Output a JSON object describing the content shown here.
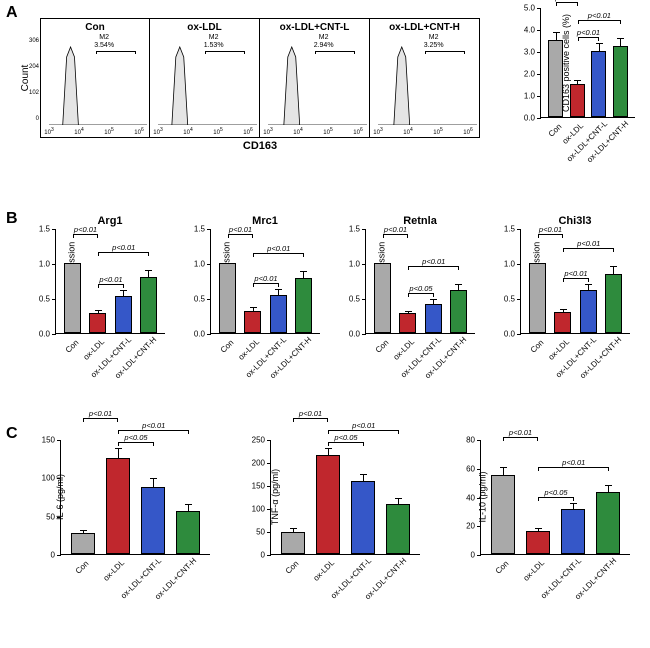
{
  "colors": {
    "con": "#a9a9a9",
    "oxldl": "#c0272d",
    "cntl": "#3557c8",
    "cnth": "#2e8b3d",
    "flow_fill": "#e5e5e5",
    "flow_stroke": "#000000",
    "bg": "#ffffff"
  },
  "group_labels": [
    "Con",
    "ox-LDL",
    "ox-LDL+CNT-L",
    "ox-LDL+CNT-H"
  ],
  "panelA": {
    "label": "A",
    "flow": {
      "ylabel": "Count",
      "xlabel": "CD163",
      "yticks": [
        "0",
        "102",
        "204",
        "306"
      ],
      "xticks": [
        "10^3",
        "10^3.5",
        "10^4",
        "10^4.5",
        "10^5",
        "10^5.5",
        "10^6"
      ],
      "panels": [
        {
          "title": "Con",
          "gate_name": "M2",
          "gate_pct": "3.54%",
          "peak_x": 0.22
        },
        {
          "title": "ox-LDL",
          "gate_name": "M2",
          "gate_pct": "1.53%",
          "peak_x": 0.22
        },
        {
          "title": "ox-LDL+CNT-L",
          "gate_name": "M2",
          "gate_pct": "2.94%",
          "peak_x": 0.24
        },
        {
          "title": "ox-LDL+CNT-H",
          "gate_name": "M2",
          "gate_pct": "3.25%",
          "peak_x": 0.24
        }
      ]
    },
    "bar": {
      "ylabel": "CD163 positive cells (%)",
      "ymax": 5,
      "ytick_step": 1,
      "values": [
        3.5,
        1.5,
        3.0,
        3.25
      ],
      "errors": [
        0.4,
        0.25,
        0.4,
        0.4
      ],
      "sig": [
        {
          "from": 0,
          "to": 1,
          "p": "p<0.01",
          "level": 2
        },
        {
          "from": 1,
          "to": 2,
          "p": "p<0.01",
          "level": 0
        },
        {
          "from": 1,
          "to": 3,
          "p": "p<0.01",
          "level": 1
        }
      ]
    }
  },
  "panelB": {
    "label": "B",
    "charts": [
      {
        "title": "Arg1",
        "ylabel": "Relative expression",
        "ymax": 1.5,
        "ytick_step": 0.5,
        "values": [
          1.0,
          0.28,
          0.53,
          0.8
        ],
        "errors": [
          0.0,
          0.06,
          0.1,
          0.12
        ],
        "sig": [
          {
            "from": 0,
            "to": 1,
            "p": "p<0.01",
            "level": 2
          },
          {
            "from": 1,
            "to": 2,
            "p": "p<0.01",
            "level": 0
          },
          {
            "from": 1,
            "to": 3,
            "p": "p<0.01",
            "level": 1
          }
        ]
      },
      {
        "title": "Mrc1",
        "ylabel": "Relative expression",
        "ymax": 1.5,
        "ytick_step": 0.5,
        "values": [
          1.0,
          0.32,
          0.55,
          0.78
        ],
        "errors": [
          0.0,
          0.06,
          0.1,
          0.12
        ],
        "sig": [
          {
            "from": 0,
            "to": 1,
            "p": "p<0.01",
            "level": 2
          },
          {
            "from": 1,
            "to": 2,
            "p": "p<0.01",
            "level": 0
          },
          {
            "from": 1,
            "to": 3,
            "p": "p<0.01",
            "level": 1
          }
        ]
      },
      {
        "title": "Retnla",
        "ylabel": "Relative expression",
        "ymax": 1.5,
        "ytick_step": 0.5,
        "values": [
          1.0,
          0.28,
          0.42,
          0.62
        ],
        "errors": [
          0.0,
          0.05,
          0.08,
          0.1
        ],
        "sig": [
          {
            "from": 0,
            "to": 1,
            "p": "p<0.01",
            "level": 2
          },
          {
            "from": 1,
            "to": 2,
            "p": "p<0.05",
            "level": 0
          },
          {
            "from": 1,
            "to": 3,
            "p": "p<0.01",
            "level": 1
          }
        ]
      },
      {
        "title": "Chi3l3",
        "ylabel": "Relative expression",
        "ymax": 1.5,
        "ytick_step": 0.5,
        "values": [
          1.0,
          0.3,
          0.62,
          0.85
        ],
        "errors": [
          0.0,
          0.06,
          0.1,
          0.12
        ],
        "sig": [
          {
            "from": 0,
            "to": 1,
            "p": "p<0.01",
            "level": 2
          },
          {
            "from": 1,
            "to": 2,
            "p": "p<0.01",
            "level": 0
          },
          {
            "from": 1,
            "to": 3,
            "p": "p<0.01",
            "level": 1
          }
        ]
      }
    ]
  },
  "panelC": {
    "label": "C",
    "charts": [
      {
        "title": "",
        "ylabel": "IL-6 (pg/ml)",
        "ymax": 150,
        "ytick_step": 50,
        "values": [
          27,
          125,
          88,
          56
        ],
        "errors": [
          5,
          15,
          12,
          10
        ],
        "sig": [
          {
            "from": 0,
            "to": 1,
            "p": "p<0.01",
            "level": 2
          },
          {
            "from": 1,
            "to": 2,
            "p": "p<0.05",
            "level": 0
          },
          {
            "from": 1,
            "to": 3,
            "p": "p<0.01",
            "level": 1
          }
        ]
      },
      {
        "title": "",
        "ylabel": "TNF-α (pg/ml)",
        "ymax": 250,
        "ytick_step": 50,
        "values": [
          48,
          215,
          158,
          108
        ],
        "errors": [
          10,
          18,
          18,
          15
        ],
        "sig": [
          {
            "from": 0,
            "to": 1,
            "p": "p<0.01",
            "level": 2
          },
          {
            "from": 1,
            "to": 2,
            "p": "p<0.05",
            "level": 0
          },
          {
            "from": 1,
            "to": 3,
            "p": "p<0.01",
            "level": 1
          }
        ]
      },
      {
        "title": "",
        "ylabel": "IL-10 (pg/ml)",
        "ymax": 80,
        "ytick_step": 20,
        "values": [
          55,
          16,
          31,
          43
        ],
        "errors": [
          6,
          3,
          5,
          6
        ],
        "sig": [
          {
            "from": 0,
            "to": 1,
            "p": "p<0.01",
            "level": 2
          },
          {
            "from": 1,
            "to": 2,
            "p": "p<0.05",
            "level": 0
          },
          {
            "from": 1,
            "to": 3,
            "p": "p<0.01",
            "level": 1
          }
        ]
      }
    ]
  }
}
